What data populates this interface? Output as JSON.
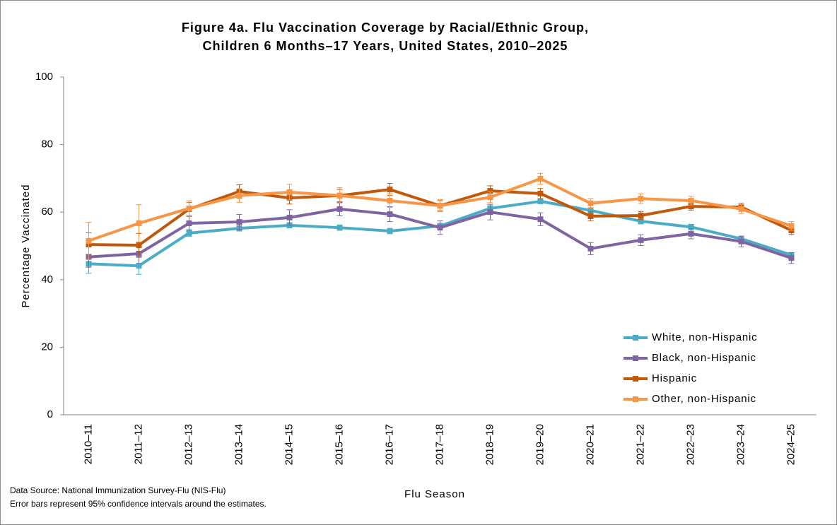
{
  "chart_data": {
    "type": "line",
    "title": "Figure 4a. Flu Vaccination Coverage by Racial/Ethnic Group,",
    "subtitle": "Children 6 Months–17 Years, United States, 2010–2025",
    "y_label": "Percentage Vaccinated",
    "x_label": "Flu Season",
    "footnotes": [
      "Data Source: National Immunization Survey-Flu (NIS-Flu)",
      "Error bars represent 95% confidence intervals around the estimates."
    ],
    "categories": [
      "2010–11",
      "2011–12",
      "2012–13",
      "2013–14",
      "2014–15",
      "2015–16",
      "2016–17",
      "2017–18",
      "2018–19",
      "2019–20",
      "2020–21",
      "2021–22",
      "2022–23",
      "2023–24",
      "2024–25"
    ],
    "series": [
      {
        "name": "White, non-Hispanic",
        "color": "#4bacc6",
        "values": [
          44.7,
          44.1,
          53.8,
          55.2,
          56.1,
          55.4,
          54.4,
          55.9,
          61.1,
          63.2,
          60.5,
          57.3,
          55.6,
          52.1,
          47.3
        ],
        "errors": [
          2.8,
          2.5,
          1.0,
          0.8,
          0.8,
          0.8,
          0.8,
          0.8,
          0.8,
          0.7,
          0.8,
          0.8,
          0.8,
          0.7,
          0.7
        ]
      },
      {
        "name": "Black, non-Hispanic",
        "color": "#8064a2",
        "values": [
          46.7,
          47.7,
          56.7,
          57.1,
          58.4,
          60.9,
          59.4,
          55.4,
          60.0,
          57.9,
          49.2,
          51.7,
          53.6,
          51.3,
          46.4
        ],
        "errors": [
          3.0,
          3.0,
          2.0,
          2.2,
          2.3,
          2.0,
          2.2,
          2.0,
          2.3,
          1.9,
          1.8,
          1.6,
          1.5,
          1.6,
          1.6
        ]
      },
      {
        "name": "Hispanic",
        "color": "#c0590b",
        "values": [
          50.4,
          50.2,
          60.9,
          66.1,
          64.2,
          64.9,
          66.7,
          61.9,
          66.3,
          65.5,
          58.8,
          59.0,
          61.7,
          61.5,
          54.6
        ],
        "errors": [
          3.5,
          3.5,
          2.0,
          2.0,
          1.8,
          1.8,
          1.8,
          1.5,
          1.5,
          1.5,
          1.3,
          1.2,
          1.1,
          1.1,
          1.2
        ]
      },
      {
        "name": "Other, non-Hispanic",
        "color": "#f79646",
        "values": [
          51.5,
          56.7,
          61.1,
          64.9,
          65.9,
          64.9,
          63.4,
          61.9,
          64.4,
          69.9,
          62.6,
          64.0,
          63.4,
          60.9,
          55.9
        ],
        "errors": [
          5.5,
          5.5,
          2.3,
          2.0,
          2.3,
          2.3,
          2.0,
          1.8,
          1.6,
          1.6,
          1.4,
          1.4,
          1.3,
          1.3,
          1.3
        ]
      }
    ],
    "ylim": [
      0,
      100
    ],
    "yticks": [
      0,
      20,
      40,
      60,
      80,
      100
    ],
    "legend": "lower right"
  }
}
